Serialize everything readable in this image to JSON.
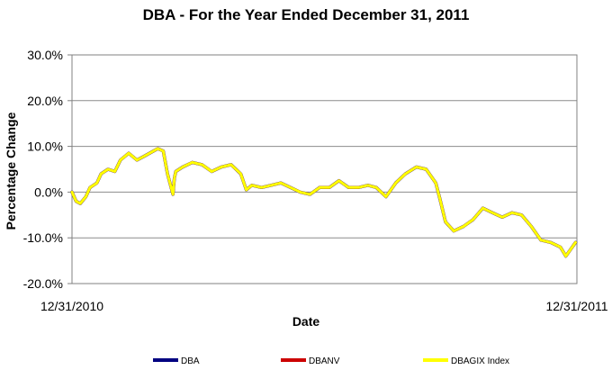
{
  "chart_data": {
    "type": "line",
    "title": "DBA - For the Year Ended December 31, 2011",
    "xlabel": "Date",
    "ylabel": "Percentage Change",
    "x_tick_labels": [
      "12/31/2010",
      "12/31/2011"
    ],
    "x_range": [
      "2010-12-31",
      "2011-12-31"
    ],
    "y_tick_labels": [
      "-20.0%",
      "-10.0%",
      "0.0%",
      "10.0%",
      "20.0%",
      "30.0%"
    ],
    "ylim": [
      -20,
      30
    ],
    "y_unit": "%",
    "grid": "horizontal major gridlines",
    "legend_position": "bottom",
    "x": [
      "2010-12-31",
      "2011-01-03",
      "2011-01-06",
      "2011-01-10",
      "2011-01-13",
      "2011-01-18",
      "2011-01-21",
      "2011-01-26",
      "2011-01-31",
      "2011-02-04",
      "2011-02-10",
      "2011-02-16",
      "2011-02-22",
      "2011-02-28",
      "2011-03-03",
      "2011-03-07",
      "2011-03-10",
      "2011-03-14",
      "2011-03-15",
      "2011-03-16",
      "2011-03-21",
      "2011-03-28",
      "2011-04-04",
      "2011-04-11",
      "2011-04-18",
      "2011-04-25",
      "2011-05-02",
      "2011-05-06",
      "2011-05-10",
      "2011-05-17",
      "2011-05-24",
      "2011-05-31",
      "2011-06-07",
      "2011-06-14",
      "2011-06-21",
      "2011-06-28",
      "2011-07-05",
      "2011-07-12",
      "2011-07-19",
      "2011-07-26",
      "2011-08-02",
      "2011-08-08",
      "2011-08-15",
      "2011-08-22",
      "2011-08-29",
      "2011-09-06",
      "2011-09-13",
      "2011-09-20",
      "2011-09-23",
      "2011-09-27",
      "2011-10-03",
      "2011-10-10",
      "2011-10-17",
      "2011-10-24",
      "2011-10-31",
      "2011-11-07",
      "2011-11-14",
      "2011-11-21",
      "2011-11-28",
      "2011-12-05",
      "2011-12-12",
      "2011-12-19",
      "2011-12-23",
      "2011-12-30"
    ],
    "series": [
      {
        "name": "DBA",
        "color": "#000080",
        "values": [
          0,
          -2,
          -2.5,
          -1,
          1,
          2,
          4,
          5,
          4.5,
          7,
          8.5,
          7,
          8,
          9,
          9.5,
          9,
          4,
          -0.5,
          3,
          4.5,
          5.5,
          6.5,
          6,
          4.5,
          5.5,
          6,
          4,
          0.5,
          1.5,
          1,
          1.5,
          2,
          1,
          0,
          -0.5,
          1,
          1,
          2.5,
          1,
          1,
          1.5,
          1,
          -1,
          2,
          4,
          5.5,
          5,
          2,
          -1.5,
          -6.5,
          -8.5,
          -7.5,
          -6,
          -3.5,
          -4.5,
          -5.5,
          -4.5,
          -5,
          -7.5,
          -10.5,
          -11,
          -12,
          -14,
          -11
        ]
      },
      {
        "name": "DBANV",
        "color": "#cc0000",
        "values": [
          0,
          -2,
          -2.5,
          -1,
          1,
          2,
          4,
          5,
          4.5,
          7,
          8.5,
          7,
          8,
          9,
          9.5,
          9,
          4,
          -0.5,
          3,
          4.5,
          5.5,
          6.5,
          6,
          4.5,
          5.5,
          6,
          4,
          0.5,
          1.5,
          1,
          1.5,
          2,
          1,
          0,
          -0.5,
          1,
          1,
          2.5,
          1,
          1,
          1.5,
          1,
          -1,
          2,
          4,
          5.5,
          5,
          2,
          -1.5,
          -6.5,
          -8.5,
          -7.5,
          -6,
          -3.5,
          -4.5,
          -5.5,
          -4.5,
          -5,
          -7.5,
          -10.5,
          -11,
          -12,
          -14,
          -11
        ]
      },
      {
        "name": "DBAGIX Index",
        "color": "#ffff00",
        "values": [
          0,
          -2,
          -2.5,
          -1,
          1,
          2,
          4,
          5,
          4.5,
          7,
          8.5,
          7,
          8,
          9,
          9.5,
          9,
          4,
          -0.5,
          3,
          4.5,
          5.5,
          6.5,
          6,
          4.5,
          5.5,
          6,
          4,
          0.5,
          1.5,
          1,
          1.5,
          2,
          1,
          0,
          -0.5,
          1,
          1,
          2.5,
          1,
          1,
          1.5,
          1,
          -1,
          2,
          4,
          5.5,
          5,
          2,
          -1.5,
          -6.5,
          -8.5,
          -7.5,
          -6,
          -3.5,
          -4.5,
          -5.5,
          -4.5,
          -5,
          -7.5,
          -10.5,
          -11,
          -12,
          -14,
          -11
        ]
      }
    ]
  }
}
